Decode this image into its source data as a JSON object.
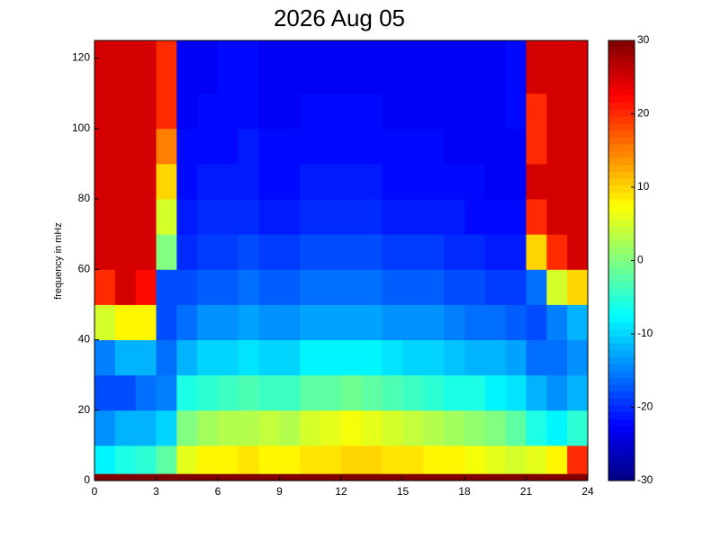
{
  "chart_data": {
    "type": "heatmap",
    "title": "2026 Aug 05",
    "ylabel": "frequency in mHz",
    "colormap": "jet",
    "xbins": [
      0,
      1,
      2,
      3,
      4,
      5,
      6,
      7,
      8,
      9,
      10,
      11,
      12,
      13,
      14,
      15,
      16,
      17,
      18,
      19,
      20,
      21,
      22,
      23,
      24
    ],
    "ybins": [
      0,
      2,
      10,
      20,
      30,
      40,
      50,
      60,
      70,
      80,
      90,
      100,
      110,
      125
    ],
    "xlim": [
      0,
      24
    ],
    "xticks": [
      0,
      3,
      6,
      9,
      12,
      15,
      18,
      21,
      24
    ],
    "ylim": [
      0,
      125
    ],
    "yticks": [
      0,
      20,
      40,
      60,
      80,
      100,
      120
    ],
    "clim": [
      -30,
      30
    ],
    "cticks": [
      -30,
      -20,
      -10,
      0,
      10,
      20,
      30
    ],
    "values": [
      [
        30,
        30,
        30,
        30,
        30,
        30,
        30,
        30,
        30,
        30,
        30,
        30,
        30,
        30,
        30,
        30,
        30,
        30,
        30,
        30,
        30,
        30,
        30,
        30
      ],
      [
        -8,
        -6,
        -5,
        -2,
        6,
        8,
        8,
        9,
        8,
        8,
        9,
        9,
        10,
        10,
        9,
        9,
        8,
        8,
        7,
        6,
        5,
        6,
        8,
        20
      ],
      [
        -14,
        -12,
        -12,
        -10,
        0,
        2,
        3,
        3,
        4,
        3,
        5,
        6,
        7,
        6,
        5,
        4,
        3,
        2,
        1,
        0,
        -2,
        -6,
        -8,
        -5
      ],
      [
        -18,
        -18,
        -16,
        -15,
        -6,
        -5,
        -4,
        -3,
        -4,
        -4,
        -2,
        -2,
        -1,
        -2,
        -3,
        -4,
        -5,
        -6,
        -6,
        -8,
        -9,
        -12,
        -14,
        -12
      ],
      [
        -15,
        -12,
        -12,
        -16,
        -12,
        -10,
        -10,
        -9,
        -10,
        -10,
        -8,
        -8,
        -8,
        -8,
        -9,
        -10,
        -10,
        -11,
        -12,
        -12,
        -13,
        -16,
        -16,
        -14
      ],
      [
        5,
        8,
        8,
        -18,
        -16,
        -14,
        -14,
        -13,
        -14,
        -14,
        -13,
        -13,
        -13,
        -13,
        -14,
        -14,
        -14,
        -15,
        -16,
        -16,
        -17,
        -18,
        -15,
        -12
      ],
      [
        20,
        25,
        22,
        -18,
        -18,
        -17,
        -17,
        -16,
        -17,
        -17,
        -16,
        -16,
        -16,
        -16,
        -17,
        -17,
        -17,
        -18,
        -18,
        -19,
        -19,
        -16,
        5,
        10
      ],
      [
        25,
        25,
        25,
        0,
        -20,
        -19,
        -19,
        -18,
        -19,
        -19,
        -18,
        -18,
        -18,
        -18,
        -19,
        -19,
        -19,
        -20,
        -20,
        -21,
        -21,
        10,
        20,
        25
      ],
      [
        25,
        25,
        25,
        5,
        -21,
        -20,
        -20,
        -20,
        -21,
        -21,
        -20,
        -20,
        -20,
        -20,
        -21,
        -21,
        -21,
        -21,
        -22,
        -22,
        -22,
        20,
        25,
        25
      ],
      [
        25,
        25,
        25,
        10,
        -22,
        -21,
        -21,
        -21,
        -22,
        -22,
        -21,
        -21,
        -21,
        -21,
        -22,
        -22,
        -22,
        -22,
        -22,
        -23,
        -23,
        25,
        25,
        25
      ],
      [
        25,
        25,
        25,
        15,
        -22,
        -22,
        -22,
        -21,
        -22,
        -22,
        -22,
        -22,
        -22,
        -22,
        -22,
        -22,
        -22,
        -23,
        -23,
        -23,
        -23,
        20,
        25,
        25
      ],
      [
        25,
        25,
        25,
        20,
        -23,
        -22,
        -22,
        -22,
        -23,
        -23,
        -22,
        -22,
        -22,
        -22,
        -23,
        -23,
        -23,
        -23,
        -23,
        -23,
        -22,
        20,
        25,
        25
      ],
      [
        25,
        25,
        25,
        20,
        -23,
        -23,
        -22,
        -22,
        -23,
        -23,
        -23,
        -23,
        -23,
        -23,
        -23,
        -23,
        -23,
        -23,
        -23,
        -23,
        -22,
        25,
        25,
        25
      ]
    ]
  }
}
